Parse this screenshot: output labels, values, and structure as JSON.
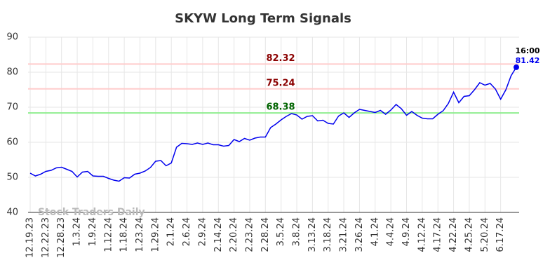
{
  "chart_data": {
    "type": "line",
    "title": "SKYW Long Term Signals",
    "watermark": "Stock Traders Daily",
    "categories": [
      "12.19.23",
      null,
      null,
      "12.22.23",
      null,
      null,
      "12.28.23",
      null,
      null,
      "1.3.24",
      null,
      null,
      "1.9.24",
      null,
      null,
      "1.12.24",
      null,
      null,
      "1.18.24",
      null,
      null,
      "1.23.24",
      null,
      null,
      "1.29.24",
      null,
      null,
      "2.1.24",
      null,
      null,
      "2.6.24",
      null,
      null,
      "2.9.24",
      null,
      null,
      "2.14.24",
      null,
      null,
      "2.20.24",
      null,
      null,
      "2.23.24",
      null,
      null,
      "2.28.24",
      null,
      null,
      "3.5.24",
      null,
      null,
      "3.8.24",
      null,
      null,
      "3.13.24",
      null,
      null,
      "3.18.24",
      null,
      null,
      "3.21.24",
      null,
      null,
      "3.26.24",
      null,
      null,
      "4.1.24",
      null,
      null,
      "4.4.24",
      null,
      null,
      "4.9.24",
      null,
      null,
      "4.12.24",
      null,
      null,
      "4.17.24",
      null,
      null,
      "4.22.24",
      null,
      null,
      "4.25.24",
      null,
      null,
      "5.20.24",
      null,
      null,
      "6.17.24",
      null,
      null,
      null
    ],
    "series": [
      {
        "name": "SKYW",
        "color": "#0000ee",
        "values": [
          51.2,
          50.4,
          50.9,
          51.7,
          52.0,
          52.7,
          52.9,
          52.3,
          51.7,
          50.1,
          51.5,
          51.7,
          50.4,
          50.3,
          50.3,
          49.7,
          49.2,
          48.9,
          49.9,
          49.8,
          50.9,
          51.2,
          51.8,
          52.8,
          54.6,
          54.8,
          53.3,
          54.1,
          58.6,
          59.7,
          59.6,
          59.4,
          59.8,
          59.4,
          59.8,
          59.3,
          59.3,
          58.9,
          59.1,
          60.8,
          60.2,
          61.1,
          60.6,
          61.2,
          61.5,
          61.5,
          64.2,
          65.2,
          66.4,
          67.4,
          68.2,
          67.8,
          66.6,
          67.4,
          67.6,
          66.1,
          66.3,
          65.4,
          65.2,
          67.5,
          68.4,
          67.1,
          68.4,
          69.4,
          69.1,
          68.8,
          68.5,
          69.1,
          68.0,
          69.2,
          70.8,
          69.6,
          67.7,
          68.8,
          67.7,
          66.9,
          66.7,
          66.7,
          68.0,
          69.0,
          71.1,
          74.3,
          71.3,
          73.1,
          73.3,
          75.0,
          77.0,
          76.3,
          76.8,
          75.2,
          72.3,
          75.0,
          79.0,
          81.42
        ]
      }
    ],
    "last_time": "16:00",
    "hlines": [
      {
        "value": 82.32,
        "color": "#ffcccc",
        "label_color": "#8b0000"
      },
      {
        "value": 75.24,
        "color": "#ffcccc",
        "label_color": "#8b0000"
      },
      {
        "value": 68.38,
        "color": "#90ee90",
        "label_color": "#006400"
      }
    ],
    "ylim": [
      40,
      90
    ],
    "yticks": [
      40,
      50,
      60,
      70,
      80,
      90
    ],
    "grid": true
  }
}
